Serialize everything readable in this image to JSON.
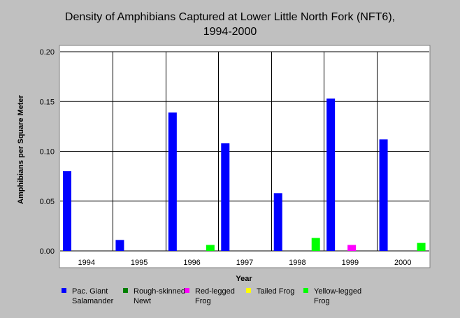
{
  "chart_data": {
    "type": "bar",
    "title_line1": "Density of Amphibians Captured at Lower Little North Fork (NFT6),",
    "title_line2": "1994-2000",
    "xlabel": "Year",
    "ylabel": "Amphibians per Square Meter",
    "categories": [
      "1994",
      "1995",
      "1996",
      "1997",
      "1998",
      "1999",
      "2000"
    ],
    "ylim": [
      0,
      0.2
    ],
    "yticks": [
      "0.00",
      "0.05",
      "0.10",
      "0.15",
      "0.20"
    ],
    "grid": true,
    "legend_position": "bottom",
    "series": [
      {
        "name": "Pac. Giant Salamander",
        "name_lines": [
          "Pac. Giant",
          "Salamander"
        ],
        "color": "#0000ff",
        "values": [
          0.08,
          0.011,
          0.139,
          0.108,
          0.058,
          0.153,
          0.112
        ]
      },
      {
        "name": "Rough-skinned Newt",
        "name_lines": [
          "Rough-skinned",
          "Newt"
        ],
        "color": "#008000",
        "values": [
          0,
          0,
          0,
          0,
          0,
          0,
          0
        ]
      },
      {
        "name": "Red-legged Frog",
        "name_lines": [
          "Red-legged",
          "Frog"
        ],
        "color": "#ff00ff",
        "values": [
          0,
          0,
          0,
          0,
          0,
          0.006,
          0
        ]
      },
      {
        "name": "Tailed Frog",
        "name_lines": [
          "Tailed Frog"
        ],
        "color": "#ffff00",
        "values": [
          0,
          0,
          0,
          0,
          0,
          0,
          0
        ]
      },
      {
        "name": "Yellow-legged Frog",
        "name_lines": [
          "Yellow-legged",
          "Frog"
        ],
        "color": "#00ff00",
        "values": [
          0,
          0,
          0.006,
          0,
          0.013,
          0,
          0.008
        ]
      }
    ]
  }
}
